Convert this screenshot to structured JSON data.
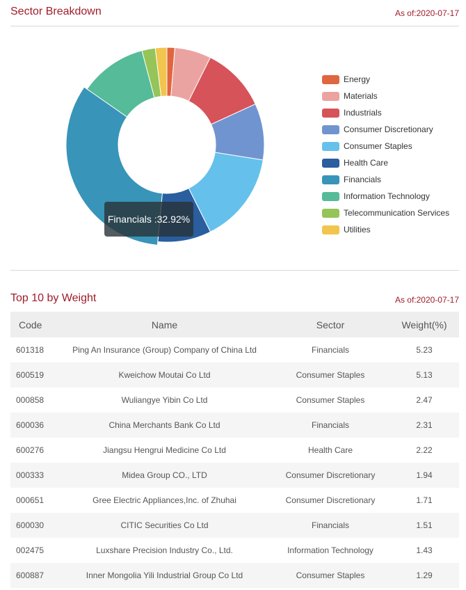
{
  "sector_section": {
    "title": "Sector Breakdown",
    "as_of": "As of:2020-07-17"
  },
  "holdings_section": {
    "title": "Top 10 by Weight",
    "as_of": "As of:2020-07-17"
  },
  "tooltip": {
    "text": "Financials :32.92%"
  },
  "chart_data": {
    "type": "pie",
    "variant": "donut",
    "title": "Sector Breakdown",
    "legend_position": "right",
    "slices": [
      {
        "name": "Energy",
        "value": 1.3,
        "color": "#e0663f"
      },
      {
        "name": "Materials",
        "value": 6.0,
        "color": "#eba3a2"
      },
      {
        "name": "Industrials",
        "value": 10.7,
        "color": "#d65359"
      },
      {
        "name": "Consumer Discretionary",
        "value": 9.3,
        "color": "#7094d0"
      },
      {
        "name": "Consumer Staples",
        "value": 15.0,
        "color": "#65c1ec"
      },
      {
        "name": "Health Care",
        "value": 8.8,
        "color": "#2a5e9e"
      },
      {
        "name": "Financials",
        "value": 32.92,
        "color": "#3894b8"
      },
      {
        "name": "Information Technology",
        "value": 11.1,
        "color": "#55bb98"
      },
      {
        "name": "Telecommunication Services",
        "value": 2.2,
        "color": "#95c459"
      },
      {
        "name": "Utilities",
        "value": 1.9,
        "color": "#f1c54e"
      }
    ],
    "highlighted": "Financials"
  },
  "holdings": {
    "headers": {
      "code": "Code",
      "name": "Name",
      "sector": "Sector",
      "weight": "Weight(%)"
    },
    "rows": [
      {
        "code": "601318",
        "name": "Ping An Insurance (Group) Company of China Ltd",
        "sector": "Financials",
        "weight": "5.23"
      },
      {
        "code": "600519",
        "name": "Kweichow Moutai Co Ltd",
        "sector": "Consumer Staples",
        "weight": "5.13"
      },
      {
        "code": "000858",
        "name": "Wuliangye Yibin Co Ltd",
        "sector": "Consumer Staples",
        "weight": "2.47"
      },
      {
        "code": "600036",
        "name": "China Merchants Bank Co Ltd",
        "sector": "Financials",
        "weight": "2.31"
      },
      {
        "code": "600276",
        "name": "Jiangsu Hengrui Medicine Co Ltd",
        "sector": "Health Care",
        "weight": "2.22"
      },
      {
        "code": "000333",
        "name": "Midea Group CO., LTD",
        "sector": "Consumer Discretionary",
        "weight": "1.94"
      },
      {
        "code": "000651",
        "name": "Gree Electric Appliances,Inc. of Zhuhai",
        "sector": "Consumer Discretionary",
        "weight": "1.71"
      },
      {
        "code": "600030",
        "name": "CITIC Securities Co Ltd",
        "sector": "Financials",
        "weight": "1.51"
      },
      {
        "code": "002475",
        "name": "Luxshare Precision Industry Co., Ltd.",
        "sector": "Information Technology",
        "weight": "1.43"
      },
      {
        "code": "600887",
        "name": "Inner Mongolia Yili Industrial Group Co Ltd",
        "sector": "Consumer Staples",
        "weight": "1.29"
      }
    ]
  }
}
